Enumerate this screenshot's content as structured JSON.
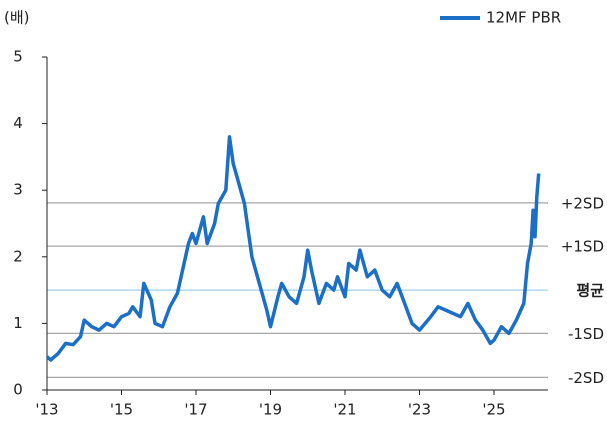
{
  "chart_data": {
    "type": "line",
    "y_label": "(배)",
    "x": [
      2013.0,
      2013.1,
      2013.3,
      2013.5,
      2013.7,
      2013.9,
      2014.0,
      2014.2,
      2014.4,
      2014.6,
      2014.8,
      2015.0,
      2015.2,
      2015.3,
      2015.5,
      2015.6,
      2015.8,
      2015.9,
      2016.1,
      2016.3,
      2016.5,
      2016.7,
      2016.8,
      2016.9,
      2017.0,
      2017.2,
      2017.3,
      2017.5,
      2017.6,
      2017.8,
      2017.9,
      2018.0,
      2018.1,
      2018.3,
      2018.5,
      2018.7,
      2018.9,
      2019.0,
      2019.2,
      2019.3,
      2019.5,
      2019.7,
      2019.9,
      2020.0,
      2020.1,
      2020.3,
      2020.5,
      2020.7,
      2020.8,
      2021.0,
      2021.1,
      2021.3,
      2021.4,
      2021.6,
      2021.8,
      2022.0,
      2022.2,
      2022.4,
      2022.6,
      2022.8,
      2023.0,
      2023.3,
      2023.5,
      2023.7,
      2023.9,
      2024.1,
      2024.3,
      2024.5,
      2024.7,
      2024.9,
      2025.0,
      2025.2,
      2025.4,
      2025.6,
      2025.8,
      2025.9,
      2026.0,
      2026.05,
      2026.1,
      2026.15,
      2026.2
    ],
    "series": [
      {
        "name": "12MF PBR",
        "color": "#1c6fc6",
        "values": [
          0.5,
          0.45,
          0.55,
          0.7,
          0.68,
          0.8,
          1.05,
          0.95,
          0.9,
          1.0,
          0.95,
          1.1,
          1.15,
          1.25,
          1.1,
          1.6,
          1.35,
          1.0,
          0.95,
          1.25,
          1.45,
          1.95,
          2.2,
          2.35,
          2.2,
          2.6,
          2.2,
          2.5,
          2.8,
          3.0,
          3.8,
          3.4,
          3.2,
          2.8,
          2.0,
          1.6,
          1.2,
          0.95,
          1.4,
          1.6,
          1.4,
          1.3,
          1.7,
          2.1,
          1.8,
          1.3,
          1.6,
          1.5,
          1.7,
          1.4,
          1.9,
          1.8,
          2.1,
          1.7,
          1.8,
          1.5,
          1.4,
          1.6,
          1.3,
          1.0,
          0.9,
          1.1,
          1.25,
          1.2,
          1.15,
          1.1,
          1.3,
          1.05,
          0.9,
          0.7,
          0.75,
          0.95,
          0.85,
          1.05,
          1.3,
          1.9,
          2.2,
          2.7,
          2.3,
          2.9,
          3.25
        ]
      }
    ],
    "xlim": [
      2013,
      2026.45
    ],
    "xticks": [
      {
        "value": 2013,
        "label": "'13"
      },
      {
        "value": 2015,
        "label": "'15"
      },
      {
        "value": 2017,
        "label": "'17"
      },
      {
        "value": 2019,
        "label": "'19"
      },
      {
        "value": 2021,
        "label": "'21"
      },
      {
        "value": 2023,
        "label": "'23"
      },
      {
        "value": 2025,
        "label": "'25"
      }
    ],
    "ylim": [
      0,
      5
    ],
    "yticks": [
      0,
      1,
      2,
      3,
      4,
      5
    ],
    "annotations": [
      {
        "label": "+2SD",
        "value": 2.81,
        "color": "#a6a6a6"
      },
      {
        "label": "+1SD",
        "value": 2.16,
        "color": "#a6a6a6"
      },
      {
        "label": "평균",
        "value": 1.5,
        "color": "#9fd0e8"
      },
      {
        "label": "-1SD",
        "value": 0.85,
        "color": "#a6a6a6"
      },
      {
        "label": "-2SD",
        "value": 0.19,
        "color": "#a6a6a6"
      }
    ],
    "legend": "top-right"
  }
}
